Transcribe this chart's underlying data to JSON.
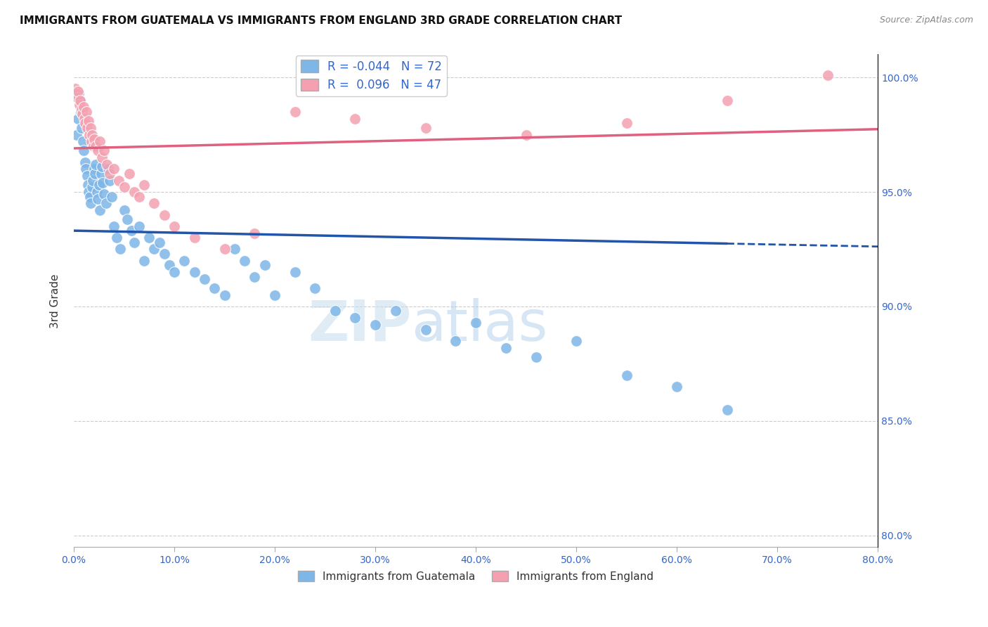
{
  "title": "IMMIGRANTS FROM GUATEMALA VS IMMIGRANTS FROM ENGLAND 3RD GRADE CORRELATION CHART",
  "source": "Source: ZipAtlas.com",
  "ylabel": "3rd Grade",
  "x_label_series1": "Immigrants from Guatemala",
  "x_label_series2": "Immigrants from England",
  "R1": -0.044,
  "N1": 72,
  "R2": 0.096,
  "N2": 47,
  "color1": "#7EB6E8",
  "color2": "#F4A0B0",
  "trendline1_color": "#2255AA",
  "trendline2_color": "#E06080",
  "background": "#FFFFFF",
  "watermark_zip": "ZIP",
  "watermark_atlas": "atlas",
  "xlim": [
    0.0,
    80.0
  ],
  "ylim": [
    79.5,
    101.0
  ],
  "yticks": [
    80.0,
    85.0,
    90.0,
    95.0,
    100.0
  ],
  "xticks": [
    0.0,
    10.0,
    20.0,
    30.0,
    40.0,
    50.0,
    60.0,
    70.0,
    80.0
  ],
  "guatemala_x": [
    0.3,
    0.4,
    0.5,
    0.6,
    0.7,
    0.8,
    0.9,
    1.0,
    1.1,
    1.2,
    1.3,
    1.4,
    1.5,
    1.6,
    1.7,
    1.8,
    1.9,
    2.0,
    2.1,
    2.2,
    2.3,
    2.4,
    2.5,
    2.6,
    2.7,
    2.8,
    2.9,
    3.0,
    3.2,
    3.4,
    3.6,
    3.8,
    4.0,
    4.3,
    4.6,
    5.0,
    5.3,
    5.7,
    6.0,
    6.5,
    7.0,
    7.5,
    8.0,
    8.5,
    9.0,
    9.5,
    10.0,
    11.0,
    12.0,
    13.0,
    14.0,
    15.0,
    16.0,
    17.0,
    18.0,
    19.0,
    20.0,
    22.0,
    24.0,
    26.0,
    28.0,
    30.0,
    32.0,
    35.0,
    38.0,
    40.0,
    43.0,
    46.0,
    50.0,
    55.0,
    60.0,
    65.0
  ],
  "guatemala_y": [
    97.5,
    98.2,
    99.3,
    99.0,
    98.5,
    97.8,
    97.2,
    96.8,
    96.3,
    96.0,
    95.7,
    95.3,
    95.0,
    94.8,
    94.5,
    95.2,
    95.5,
    96.0,
    95.8,
    96.2,
    95.0,
    94.7,
    95.3,
    94.2,
    95.8,
    96.1,
    95.4,
    94.9,
    94.5,
    96.0,
    95.5,
    94.8,
    93.5,
    93.0,
    92.5,
    94.2,
    93.8,
    93.3,
    92.8,
    93.5,
    92.0,
    93.0,
    92.5,
    92.8,
    92.3,
    91.8,
    91.5,
    92.0,
    91.5,
    91.2,
    90.8,
    90.5,
    92.5,
    92.0,
    91.3,
    91.8,
    90.5,
    91.5,
    90.8,
    89.8,
    89.5,
    89.2,
    89.8,
    89.0,
    88.5,
    89.3,
    88.2,
    87.8,
    88.5,
    87.0,
    86.5,
    85.5
  ],
  "england_x": [
    0.15,
    0.25,
    0.35,
    0.45,
    0.55,
    0.65,
    0.75,
    0.85,
    0.95,
    1.05,
    1.15,
    1.25,
    1.35,
    1.45,
    1.55,
    1.65,
    1.75,
    1.85,
    1.95,
    2.05,
    2.2,
    2.4,
    2.6,
    2.8,
    3.0,
    3.3,
    3.6,
    4.0,
    4.5,
    5.0,
    5.5,
    6.0,
    6.5,
    7.0,
    8.0,
    9.0,
    10.0,
    12.0,
    15.0,
    18.0,
    22.0,
    28.0,
    35.0,
    45.0,
    55.0,
    65.0,
    75.0
  ],
  "england_y": [
    99.5,
    99.3,
    99.1,
    99.4,
    98.8,
    99.0,
    98.6,
    98.4,
    98.7,
    98.2,
    98.0,
    98.5,
    97.8,
    98.1,
    97.5,
    97.8,
    97.2,
    97.5,
    97.0,
    97.3,
    97.0,
    96.8,
    97.2,
    96.5,
    96.8,
    96.2,
    95.8,
    96.0,
    95.5,
    95.2,
    95.8,
    95.0,
    94.8,
    95.3,
    94.5,
    94.0,
    93.5,
    93.0,
    92.5,
    93.2,
    98.5,
    98.2,
    97.8,
    97.5,
    98.0,
    99.0,
    100.1
  ]
}
